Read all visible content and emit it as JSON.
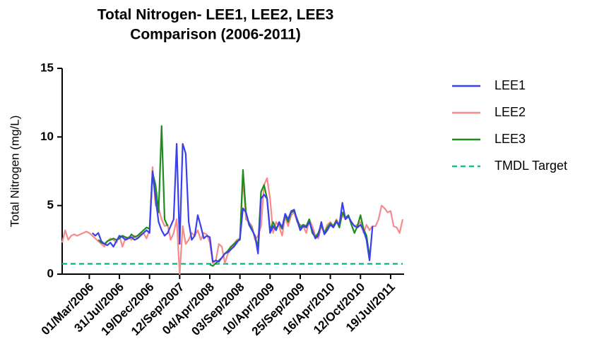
{
  "chart_data": {
    "type": "line",
    "title": "Total  Nitrogen- LEE1, LEE2,  LEE3",
    "subtitle": "Comparison (2006-2011)",
    "y_label": "Total Nitrogen (mg/L)",
    "ylim": [
      0,
      15
    ],
    "yticks": [
      0,
      5,
      10,
      15
    ],
    "categories": [
      null,
      null,
      null,
      null,
      null,
      null,
      null,
      null,
      null,
      "01/Mar/2006",
      null,
      null,
      null,
      null,
      null,
      null,
      null,
      null,
      null,
      "31/Jul/2006",
      null,
      null,
      null,
      null,
      null,
      null,
      null,
      null,
      null,
      "19/Dec/2006",
      null,
      null,
      null,
      null,
      null,
      null,
      null,
      null,
      null,
      "12/Sep/2007",
      null,
      null,
      null,
      null,
      null,
      null,
      null,
      null,
      null,
      "04/Apr/2008",
      null,
      null,
      null,
      null,
      null,
      null,
      null,
      null,
      null,
      "03/Sep/2008",
      null,
      null,
      null,
      null,
      null,
      null,
      null,
      null,
      null,
      "10/Apr/2009",
      null,
      null,
      null,
      null,
      null,
      null,
      null,
      null,
      null,
      "25/Sep/2009",
      null,
      null,
      null,
      null,
      null,
      null,
      null,
      null,
      null,
      "16/Apr/2010",
      null,
      null,
      null,
      null,
      null,
      null,
      null,
      null,
      null,
      "12/Oct/2010",
      null,
      null,
      null,
      null,
      null,
      null,
      null,
      null,
      null,
      "19/Jul/2011",
      null,
      null,
      null,
      null
    ],
    "series": [
      {
        "name": "LEE1",
        "color": "#3a3ff0",
        "values": [
          null,
          null,
          null,
          null,
          null,
          null,
          null,
          null,
          null,
          null,
          3.0,
          2.8,
          3.0,
          2.4,
          2.2,
          2.1,
          2.3,
          2.0,
          2.4,
          2.8,
          2.7,
          2.5,
          2.6,
          2.7,
          2.5,
          2.6,
          2.8,
          3.0,
          3.2,
          3.0,
          7.5,
          5.5,
          3.8,
          3.2,
          2.8,
          3.0,
          3.5,
          4.0,
          9.5,
          2.2,
          9.5,
          8.8,
          3.8,
          2.5,
          2.8,
          4.3,
          3.5,
          2.6,
          2.8,
          2.7,
          0.9,
          1.0,
          0.9,
          1.2,
          1.5,
          1.6,
          1.8,
          2.0,
          2.3,
          2.6,
          4.8,
          4.5,
          3.6,
          3.2,
          2.8,
          1.5,
          5.5,
          5.8,
          5.5,
          3.0,
          3.5,
          3.2,
          3.8,
          3.4,
          4.4,
          4.0,
          4.6,
          4.7,
          3.9,
          3.2,
          3.5,
          3.4,
          3.8,
          3.2,
          2.6,
          2.8,
          3.8,
          2.9,
          3.2,
          3.6,
          3.4,
          3.8,
          3.6,
          5.2,
          4.0,
          4.2,
          3.8,
          3.5,
          3.4,
          3.6,
          3.2,
          2.5,
          1.0,
          3.5,
          null,
          null,
          null,
          null,
          null,
          null,
          null,
          null,
          null,
          null
        ]
      },
      {
        "name": "LEE2",
        "color": "#f78b8b",
        "values": [
          2.3,
          3.2,
          2.5,
          2.8,
          2.9,
          2.8,
          2.9,
          3.0,
          3.1,
          3.0,
          2.8,
          2.6,
          2.4,
          2.2,
          2.0,
          2.4,
          2.6,
          2.5,
          2.3,
          2.8,
          2.0,
          2.6,
          2.7,
          2.5,
          2.8,
          2.6,
          2.9,
          3.0,
          2.6,
          3.2,
          7.8,
          5.0,
          4.8,
          4.0,
          3.5,
          3.6,
          2.5,
          3.0,
          4.0,
          0.0,
          3.5,
          2.2,
          2.5,
          3.0,
          2.8,
          3.2,
          2.5,
          3.0,
          2.9,
          2.3,
          0.8,
          1.0,
          2.2,
          2.0,
          0.8,
          1.5,
          1.8,
          2.2,
          2.5,
          2.6,
          7.0,
          4.0,
          3.8,
          3.5,
          2.5,
          2.8,
          3.5,
          6.5,
          7.0,
          5.5,
          3.0,
          3.8,
          3.5,
          2.8,
          4.2,
          3.5,
          4.3,
          4.5,
          3.8,
          3.6,
          3.5,
          3.0,
          4.0,
          3.5,
          2.8,
          2.6,
          3.5,
          3.0,
          3.6,
          3.8,
          3.5,
          4.0,
          3.6,
          4.3,
          4.0,
          4.2,
          3.8,
          3.5,
          3.6,
          3.8,
          3.0,
          3.6,
          3.2,
          3.5,
          3.5,
          4.0,
          5.0,
          4.8,
          4.5,
          4.6,
          3.5,
          3.4,
          3.0,
          4.0
        ]
      },
      {
        "name": "LEE3",
        "color": "#1e8c1e",
        "values": [
          null,
          null,
          null,
          null,
          null,
          null,
          null,
          null,
          null,
          null,
          null,
          null,
          2.5,
          2.3,
          2.2,
          2.4,
          2.5,
          2.6,
          2.5,
          2.6,
          2.8,
          2.7,
          2.6,
          2.9,
          2.7,
          2.8,
          3.0,
          3.2,
          3.4,
          3.3,
          7.4,
          6.5,
          4.5,
          10.8,
          4.0,
          3.5,
          null,
          null,
          null,
          null,
          null,
          null,
          null,
          null,
          null,
          null,
          null,
          null,
          null,
          0.7,
          0.6,
          0.8,
          1.0,
          1.2,
          1.5,
          1.7,
          2.0,
          2.2,
          2.4,
          2.5,
          7.6,
          4.5,
          3.7,
          3.3,
          2.7,
          2.0,
          6.0,
          6.5,
          5.5,
          3.2,
          3.8,
          3.3,
          3.7,
          3.3,
          4.3,
          3.8,
          4.5,
          4.6,
          4.0,
          3.4,
          3.6,
          3.5,
          4.0,
          3.0,
          2.7,
          3.0,
          3.6,
          3.0,
          3.4,
          3.7,
          3.5,
          3.9,
          3.4,
          4.5,
          4.1,
          4.3,
          3.6,
          3.0,
          3.5,
          4.3,
          3.3,
          2.8,
          1.3,
          null,
          null,
          null,
          null,
          null,
          null,
          null,
          null,
          null,
          null,
          null
        ]
      }
    ],
    "reference_lines": [
      {
        "name": "TMDL Target",
        "color": "#1abc8c",
        "dash": true,
        "value": 0.75
      }
    ]
  }
}
